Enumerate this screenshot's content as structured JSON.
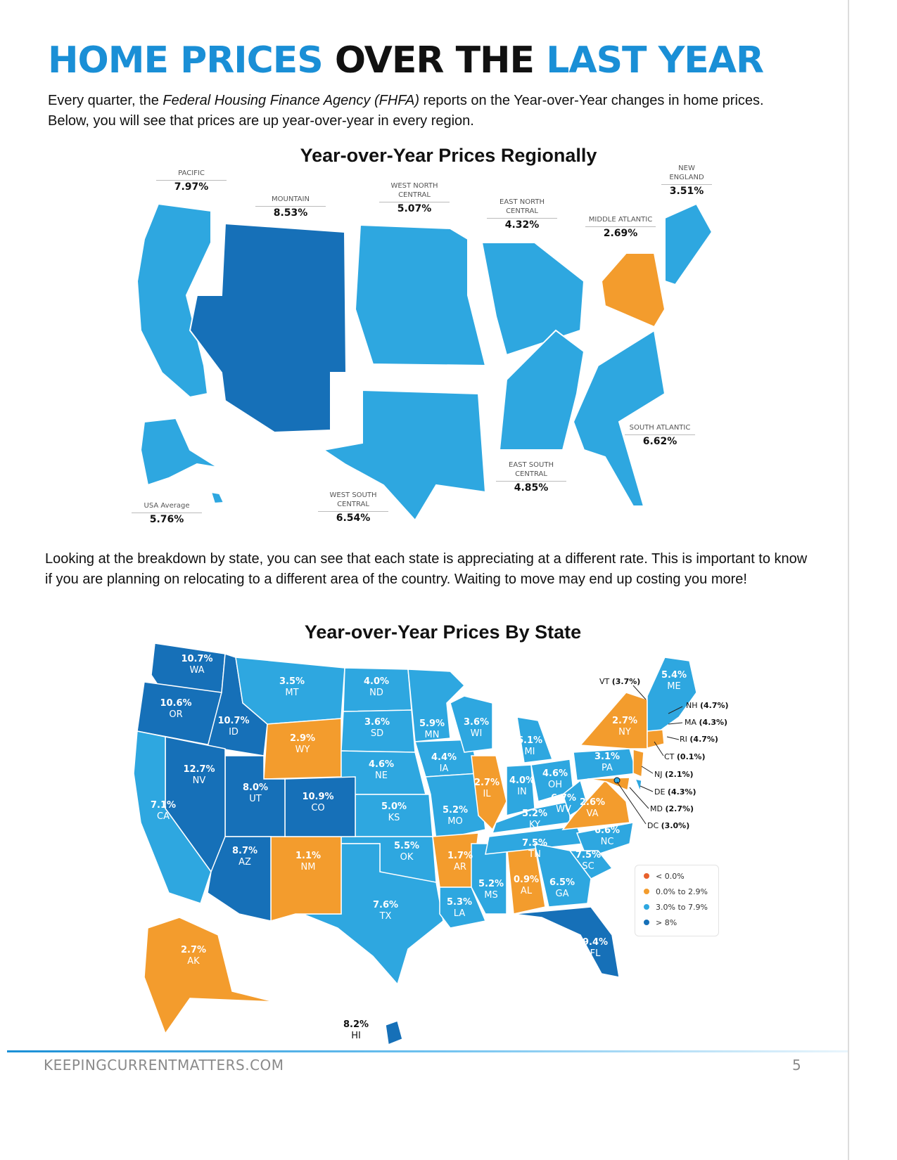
{
  "title": {
    "part1": "HOME PRICES",
    "part2": "OVER THE",
    "part3": "LAST YEAR"
  },
  "intro": {
    "a": "Every quarter, the ",
    "b": "Federal Housing Finance Agency (FHFA)",
    "c": " reports on the Year-over-Year changes in home prices. Below,  you will  see that prices are up year-over-year in every region."
  },
  "regional": {
    "title": "Year-over-Year Prices Regionally",
    "regions": [
      {
        "name": "PACIFIC",
        "value": "7.97%"
      },
      {
        "name": "MOUNTAIN",
        "value": "8.53%"
      },
      {
        "name": "WEST NORTH CENTRAL",
        "value": "5.07%"
      },
      {
        "name": "EAST NORTH CENTRAL",
        "value": "4.32%"
      },
      {
        "name": "MIDDLE ATLANTIC",
        "value": "2.69%"
      },
      {
        "name": "NEW ENGLAND",
        "value": "3.51%"
      },
      {
        "name": "SOUTH ATLANTIC",
        "value": "6.62%"
      },
      {
        "name": "EAST SOUTH CENTRAL",
        "value": "4.85%"
      },
      {
        "name": "WEST SOUTH CENTRAL",
        "value": "6.54%"
      },
      {
        "name": "USA Average",
        "value": "5.76%"
      }
    ]
  },
  "para2": "Looking at the breakdown by state, you can see that each state is appreciating at a different rate. This is important to know if you are planning on relocating to a different area of the country. Waiting to move may end up costing you more!",
  "state_map": {
    "title": "Year-over-Year Prices By State",
    "states": {
      "WA": "10.7%",
      "OR": "10.6%",
      "ID": "10.7%",
      "MT": "3.5%",
      "WY": "2.9%",
      "ND": "4.0%",
      "SD": "3.6%",
      "NE": "4.6%",
      "KS": "5.0%",
      "OK": "5.5%",
      "TX": "7.6%",
      "NM": "1.1%",
      "CO": "10.9%",
      "UT": "8.0%",
      "NV": "12.7%",
      "CA": "7.1%",
      "AZ": "8.7%",
      "MN": "5.9%",
      "IA": "4.4%",
      "MO": "5.2%",
      "AR": "1.7%",
      "LA": "5.3%",
      "MS": "5.2%",
      "AL": "0.9%",
      "WI": "3.6%",
      "IL": "2.7%",
      "IN": "4.0%",
      "MI": "6.1%",
      "OH": "4.6%",
      "KY": "5.2%",
      "TN": "7.5%",
      "WV": "6.7%",
      "VA": "2.6%",
      "NC": "6.6%",
      "SC": "7.5%",
      "GA": "6.5%",
      "FL": "9.4%",
      "PA": "3.1%",
      "NY": "2.7%",
      "ME": "5.4%",
      "AK": "2.7%",
      "HI": "8.2%"
    },
    "callouts": [
      {
        "code": "VT",
        "value": "(3.7%)"
      },
      {
        "code": "NH",
        "value": "(4.7%)"
      },
      {
        "code": "MA",
        "value": "(4.3%)"
      },
      {
        "code": "RI",
        "value": "(4.7%)"
      },
      {
        "code": "CT",
        "value": "(0.1%)"
      },
      {
        "code": "NJ",
        "value": "(2.1%)"
      },
      {
        "code": "DE",
        "value": "(4.3%)"
      },
      {
        "code": "MD",
        "value": "(2.7%)"
      },
      {
        "code": "DC",
        "value": "(3.0%)"
      }
    ],
    "legend": [
      {
        "label": "< 0.0%",
        "color": "#e8612c"
      },
      {
        "label": "0.0% to 2.9%",
        "color": "#f39c2d"
      },
      {
        "label": "3.0% to 7.9%",
        "color": "#2ea7e0"
      },
      {
        "label": "> 8%",
        "color": "#1670b8"
      }
    ]
  },
  "colors": {
    "light": "#2ea7e0",
    "dark": "#1670b8",
    "orange": "#f39c2d"
  },
  "footer": {
    "site": "KEEPINGCURRENTMATTERS.COM",
    "page": "5"
  }
}
